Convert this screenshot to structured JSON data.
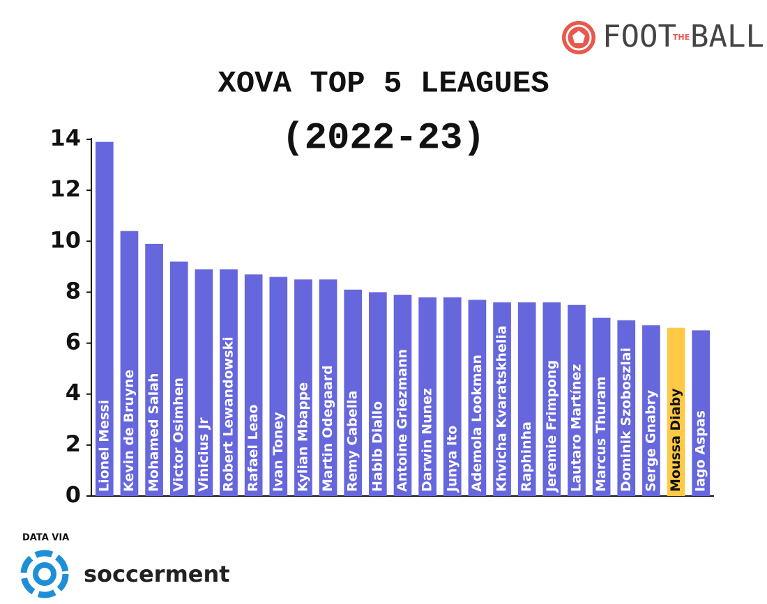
{
  "chart_data": {
    "type": "bar",
    "title": "XOVA TOP 5 LEAGUES",
    "subtitle": "(2022-23)",
    "categories": [
      "Lionel Messi",
      "Kevin de Bruyne",
      "Mohamed Salah",
      "Victor Osimhen",
      "Vinicius Jr",
      "Robert Lewandowski",
      "Rafael Leao",
      "Ivan Toney",
      "Kylian Mbappe",
      "Martin Odegaard",
      "Remy Cabella",
      "Habib Diallo",
      "Antoine Griezmann",
      "Darwin Nunez",
      "Junya Ito",
      "Ademola Lookman",
      "Khvicha Kvaratskhelia",
      "Raphinha",
      "Jeremie Frimpong",
      "Lautaro Martínez",
      "Marcus Thuram",
      "Dominik Szoboszlai",
      "Serge Gnabry",
      "Moussa Diaby",
      "Iago Aspas"
    ],
    "values": [
      13.9,
      10.4,
      9.9,
      9.2,
      8.9,
      8.9,
      8.7,
      8.6,
      8.5,
      8.5,
      8.1,
      8.0,
      7.9,
      7.8,
      7.8,
      7.7,
      7.6,
      7.6,
      7.6,
      7.5,
      7.0,
      6.9,
      6.7,
      6.6,
      6.5
    ],
    "colors": [
      "#6666dd",
      "#6666dd",
      "#6666dd",
      "#6666dd",
      "#6666dd",
      "#6666dd",
      "#6666dd",
      "#6666dd",
      "#6666dd",
      "#6666dd",
      "#6666dd",
      "#6666dd",
      "#6666dd",
      "#6666dd",
      "#6666dd",
      "#6666dd",
      "#6666dd",
      "#6666dd",
      "#6666dd",
      "#6666dd",
      "#6666dd",
      "#6666dd",
      "#6666dd",
      "#ffc845",
      "#6666dd"
    ],
    "ylim": [
      0,
      14
    ],
    "yticks": [
      0,
      2,
      4,
      6,
      8,
      10,
      12,
      14
    ],
    "grid": false
  },
  "brand": {
    "first": "FOOT",
    "middle": "THE",
    "last": "BALL"
  },
  "source": {
    "label": "DATA VIA",
    "name": "soccerment"
  }
}
